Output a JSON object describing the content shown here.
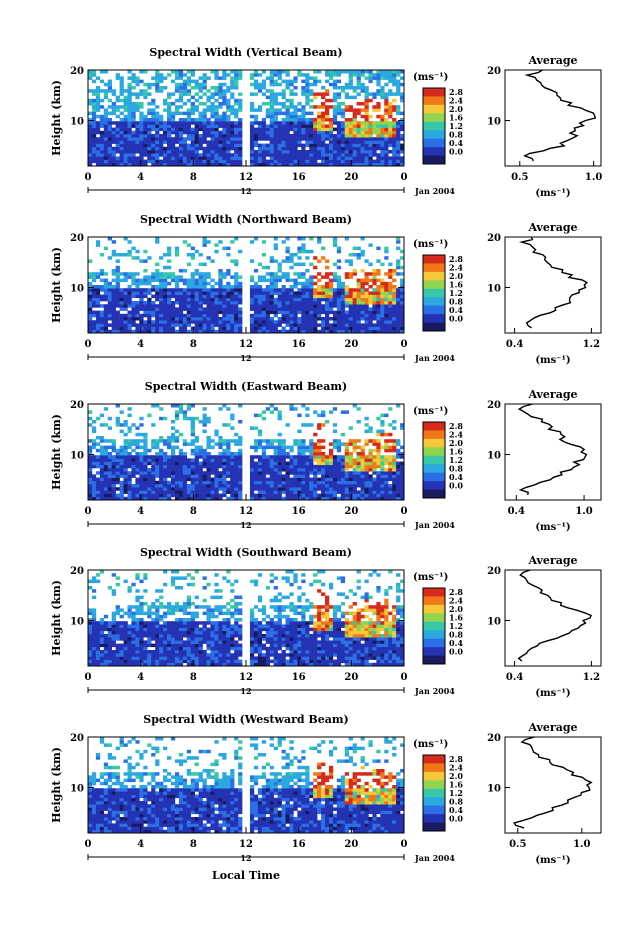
{
  "x_axis_label": "Local Time",
  "date_label": "Jan 2004",
  "colorbar": {
    "unit": "(ms⁻¹)",
    "ticks": [
      "2.8",
      "2.4",
      "2.0",
      "1.6",
      "1.2",
      "0.8",
      "0.4",
      "0.0"
    ],
    "colors": [
      "#d62a1c",
      "#f07818",
      "#f4c838",
      "#90d450",
      "#38c8a8",
      "#2ca8e0",
      "#2b6fe6",
      "#2432b4",
      "#1a1a60"
    ]
  },
  "height_axis_label": "Height (km)",
  "average_title": "Average",
  "average_xlabel": "(ms⁻¹)",
  "chart_data": [
    {
      "type": "heatmap",
      "title": "Spectral Width (Vertical Beam)",
      "ylabel": "Height (km)",
      "xlabel": "Local Time",
      "x_ticks": [
        "0",
        "4",
        "8",
        "12",
        "16",
        "20",
        "0"
      ],
      "secondary_tick": "12",
      "xlim": [
        0,
        24
      ],
      "ylim": [
        1,
        20
      ],
      "y_ticks": [
        "20",
        "10"
      ],
      "color_ticks": [
        "2.8",
        "2.4",
        "2.0",
        "1.6",
        "1.2",
        "0.8",
        "0.4",
        "0.0"
      ],
      "profile": {
        "title": "Average",
        "xlabel": "(ms⁻¹)",
        "x_ticks": [
          "0.5",
          "1.0"
        ],
        "xlim": [
          0.4,
          1.05
        ],
        "height": [
          2,
          3,
          4,
          5,
          6,
          7,
          8,
          9,
          10,
          11,
          12,
          13,
          14,
          15,
          16,
          17,
          18,
          19,
          20
        ],
        "value": [
          0.62,
          0.55,
          0.66,
          0.78,
          0.82,
          0.85,
          0.88,
          0.9,
          0.95,
          1.0,
          0.92,
          0.85,
          0.78,
          0.74,
          0.7,
          0.65,
          0.6,
          0.58,
          0.62
        ]
      }
    },
    {
      "type": "heatmap",
      "title": "Spectral Width (Northward Beam)",
      "ylabel": "Height (km)",
      "xlabel": "Local Time",
      "x_ticks": [
        "0",
        "4",
        "8",
        "12",
        "16",
        "20",
        "0"
      ],
      "secondary_tick": "12",
      "xlim": [
        0,
        24
      ],
      "ylim": [
        1,
        20
      ],
      "y_ticks": [
        "20",
        "10"
      ],
      "color_ticks": [
        "2.8",
        "2.4",
        "2.0",
        "1.6",
        "1.2",
        "0.8",
        "0.4",
        "0.0"
      ],
      "profile": {
        "title": "Average",
        "xlabel": "(ms⁻¹)",
        "x_ticks": [
          "0.4",
          "1.2"
        ],
        "xlim": [
          0.3,
          1.3
        ],
        "height": [
          2,
          3,
          4,
          5,
          6,
          7,
          8,
          9,
          10,
          11,
          12,
          13,
          14,
          15,
          16,
          17,
          18,
          19,
          20
        ],
        "value": [
          0.55,
          0.5,
          0.6,
          0.75,
          0.85,
          0.95,
          1.0,
          1.05,
          1.1,
          1.15,
          1.0,
          0.92,
          0.82,
          0.75,
          0.7,
          0.62,
          0.55,
          0.5,
          0.6
        ]
      }
    },
    {
      "type": "heatmap",
      "title": "Spectral Width (Eastward Beam)",
      "ylabel": "Height (km)",
      "xlabel": "Local Time",
      "x_ticks": [
        "0",
        "4",
        "8",
        "12",
        "16",
        "20",
        "0"
      ],
      "secondary_tick": "12",
      "xlim": [
        0,
        24
      ],
      "ylim": [
        1,
        20
      ],
      "y_ticks": [
        "20",
        "10"
      ],
      "color_ticks": [
        "2.8",
        "2.4",
        "2.0",
        "1.6",
        "1.2",
        "0.8",
        "0.4",
        "0.0"
      ],
      "profile": {
        "title": "Average",
        "xlabel": "(ms⁻¹)",
        "x_ticks": [
          "0.4",
          "1.0"
        ],
        "xlim": [
          0.3,
          1.15
        ],
        "height": [
          2,
          3,
          4,
          5,
          6,
          7,
          8,
          9,
          10,
          11,
          12,
          13,
          14,
          15,
          16,
          17,
          18,
          19,
          20
        ],
        "value": [
          0.5,
          0.45,
          0.55,
          0.68,
          0.78,
          0.86,
          0.92,
          0.98,
          1.02,
          1.0,
          0.9,
          0.82,
          0.78,
          0.72,
          0.66,
          0.6,
          0.52,
          0.45,
          0.55
        ]
      }
    },
    {
      "type": "heatmap",
      "title": "Spectral Width (Southward Beam)",
      "ylabel": "Height (km)",
      "xlabel": "Local Time",
      "x_ticks": [
        "0",
        "4",
        "8",
        "12",
        "16",
        "20",
        "0"
      ],
      "secondary_tick": "12",
      "xlim": [
        0,
        24
      ],
      "ylim": [
        1,
        20
      ],
      "y_ticks": [
        "20",
        "10"
      ],
      "color_ticks": [
        "2.8",
        "2.4",
        "2.0",
        "1.6",
        "1.2",
        "0.8",
        "0.4",
        "0.0"
      ],
      "profile": {
        "title": "Average",
        "xlabel": "(ms⁻¹)",
        "x_ticks": [
          "0.4",
          "1.2"
        ],
        "xlim": [
          0.3,
          1.3
        ],
        "height": [
          2,
          3,
          4,
          5,
          6,
          7,
          8,
          9,
          10,
          11,
          12,
          13,
          14,
          15,
          16,
          17,
          18,
          19,
          20
        ],
        "value": [
          0.5,
          0.45,
          0.52,
          0.62,
          0.75,
          0.88,
          0.98,
          1.08,
          1.15,
          1.2,
          1.05,
          0.92,
          0.8,
          0.72,
          0.65,
          0.58,
          0.52,
          0.48,
          0.55
        ]
      }
    },
    {
      "type": "heatmap",
      "title": "Spectral Width (Westward Beam)",
      "ylabel": "Height (km)",
      "xlabel": "Local Time",
      "x_ticks": [
        "0",
        "4",
        "8",
        "12",
        "16",
        "20",
        "0"
      ],
      "secondary_tick": "12",
      "xlim": [
        0,
        24
      ],
      "ylim": [
        1,
        20
      ],
      "y_ticks": [
        "20",
        "10"
      ],
      "color_ticks": [
        "2.8",
        "2.4",
        "2.0",
        "1.6",
        "1.2",
        "0.8",
        "0.4",
        "0.0"
      ],
      "profile": {
        "title": "Average",
        "xlabel": "(ms⁻¹)",
        "x_ticks": [
          "0.5",
          "1.0"
        ],
        "xlim": [
          0.4,
          1.15
        ],
        "height": [
          2,
          3,
          4,
          5,
          6,
          7,
          8,
          9,
          10,
          11,
          12,
          13,
          14,
          15,
          16,
          17,
          18,
          19,
          20
        ],
        "value": [
          0.52,
          0.48,
          0.58,
          0.7,
          0.8,
          0.88,
          0.94,
          1.0,
          1.05,
          1.08,
          0.98,
          0.9,
          0.82,
          0.75,
          0.7,
          0.64,
          0.58,
          0.55,
          0.6
        ]
      }
    }
  ]
}
